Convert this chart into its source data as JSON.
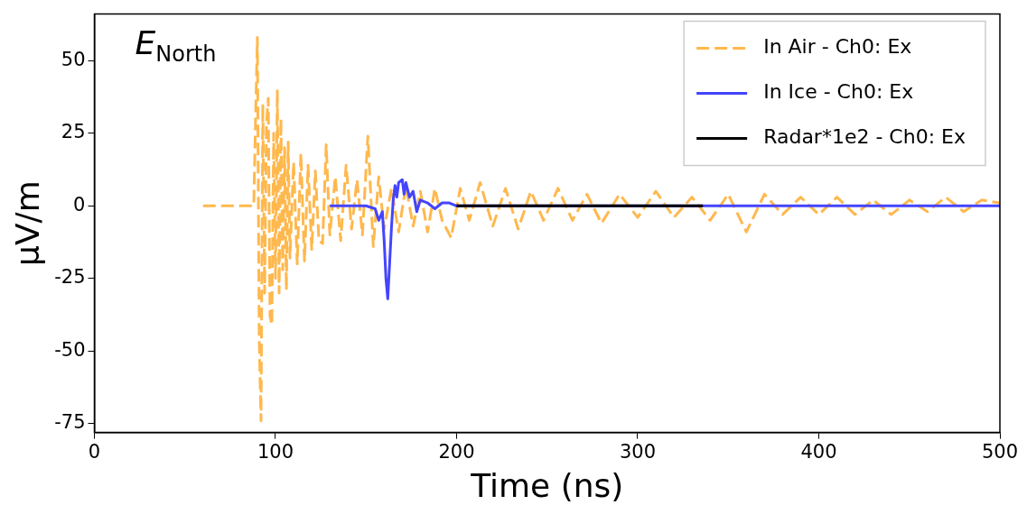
{
  "chart_data": {
    "type": "line",
    "xlabel": "Time (ns)",
    "ylabel": "μV/m",
    "annotations": [
      "E$_{North}$"
    ],
    "xlim": [
      0,
      500
    ],
    "xticks": [
      0,
      100,
      200,
      300,
      400,
      500
    ],
    "ylim": [
      -78,
      66
    ],
    "yticks": [
      -75,
      -50,
      -25,
      0,
      25,
      50
    ],
    "grid": false,
    "legend": "top right",
    "series": [
      {
        "name": "In Air - Ch0: Ex",
        "color": "#ffb84d",
        "line_style": "dashed",
        "x": [
          60,
          88,
          89,
          90,
          91,
          92,
          93,
          94,
          95,
          96,
          97,
          98,
          99,
          100,
          101,
          102,
          103,
          104,
          105,
          106,
          107,
          108,
          110,
          112,
          114,
          116,
          118,
          120,
          122,
          124,
          126,
          128,
          130,
          133,
          136,
          139,
          142,
          145,
          148,
          151,
          154,
          157,
          160,
          164,
          168,
          172,
          176,
          180,
          184,
          188,
          192,
          197,
          202,
          207,
          213,
          220,
          227,
          234,
          241,
          248,
          256,
          264,
          272,
          280,
          290,
          300,
          310,
          320,
          330,
          340,
          350,
          360,
          370,
          380,
          390,
          400,
          410,
          420,
          430,
          440,
          450,
          460,
          470,
          480,
          490,
          500
        ],
        "values": [
          0,
          0,
          30,
          58,
          -45,
          -74,
          35,
          -30,
          28,
          37,
          -38,
          -41,
          25,
          -25,
          40,
          -30,
          30,
          -22,
          20,
          -29,
          22,
          -18,
          15,
          -20,
          18,
          -19,
          14,
          -15,
          12,
          -12,
          -13,
          21,
          -10,
          10,
          -12,
          14,
          -8,
          9,
          -10,
          24,
          -14,
          10,
          -8,
          6,
          -9,
          7,
          -7,
          5,
          -9,
          6,
          -5,
          -11,
          6,
          -5,
          8,
          -7,
          6,
          -8,
          5,
          -5,
          6,
          -5,
          4,
          -6,
          4,
          -4,
          5,
          -4,
          3,
          -5,
          4,
          -9,
          4,
          -3,
          3,
          -3,
          3,
          -3,
          2,
          -3,
          2,
          -2,
          3,
          -2,
          2,
          1
        ]
      },
      {
        "name": "In Ice - Ch0: Ex",
        "color": "#4444ff",
        "line_style": "solid",
        "x": [
          130,
          150,
          155,
          157,
          159,
          160,
          161,
          162,
          163,
          164,
          165,
          166,
          167,
          168,
          170,
          171,
          172,
          174,
          176,
          178,
          180,
          184,
          188,
          192,
          196,
          200,
          500
        ],
        "values": [
          0,
          0,
          -1,
          -5,
          -2,
          -12,
          -25,
          -32,
          -20,
          -8,
          2,
          7,
          3,
          8,
          9,
          4,
          8,
          3,
          5,
          -2,
          2,
          1,
          -1,
          1,
          1,
          0,
          0
        ]
      },
      {
        "name": "Radar*1e2 - Ch0: Ex",
        "color": "#000000",
        "line_style": "solid",
        "x": [
          200,
          336
        ],
        "values": [
          0,
          0
        ]
      }
    ]
  }
}
